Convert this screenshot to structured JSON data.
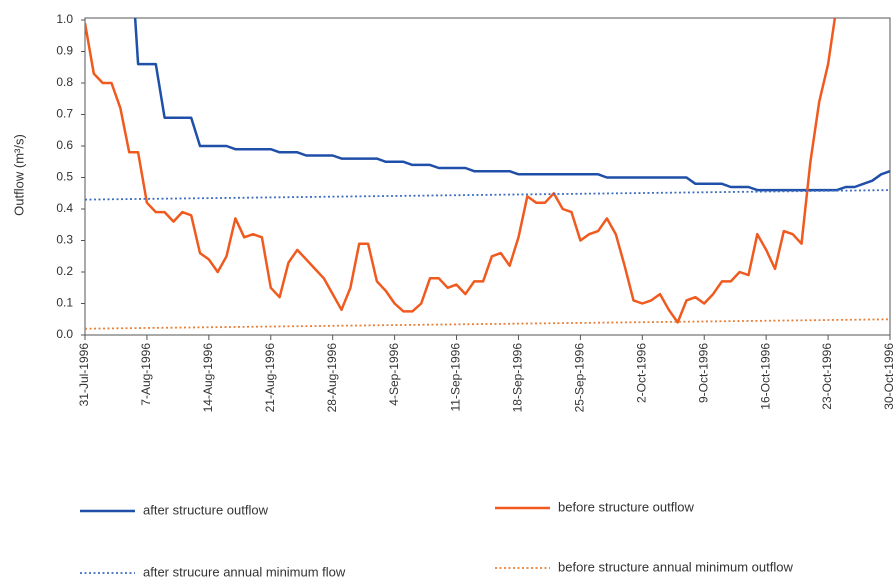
{
  "chart_data": {
    "type": "line",
    "ylabel": "Outflow (m³/s)",
    "xlim": [
      "31-Jul-1996",
      "30-Oct-1996"
    ],
    "xticks": [
      "31-Jul-1996",
      "7-Aug-1996",
      "14-Aug-1996",
      "21-Aug-1996",
      "28-Aug-1996",
      "4-Sep-1996",
      "11-Sep-1996",
      "18-Sep-1996",
      "25-Sep-1996",
      "2-Oct-1996",
      "9-Oct-1996",
      "16-Oct-1996",
      "23-Oct-1996",
      "30-Oct-1996"
    ],
    "ylim": [
      0,
      1
    ],
    "yticks": [
      {
        "value": 0,
        "label": "0.0"
      },
      0.1,
      0.2,
      0.3,
      0.4,
      0.5,
      0.6,
      0.7,
      0.8,
      0.9,
      {
        "value": 1,
        "label": "1.0"
      }
    ],
    "series": [
      {
        "name": "after structure outflow",
        "color": "#1f4fa8",
        "style": "solid",
        "x": [
          "5-Aug-1996",
          "6-Aug-1996",
          "7-Aug-1996",
          "8-Aug-1996",
          "9-Aug-1996",
          "10-Aug-1996",
          "11-Aug-1996",
          "12-Aug-1996",
          "13-Aug-1996",
          "14-Aug-1996",
          "15-Aug-1996",
          "16-Aug-1996",
          "17-Aug-1996",
          "18-Aug-1996",
          "19-Aug-1996",
          "20-Aug-1996",
          "21-Aug-1996",
          "22-Aug-1996",
          "23-Aug-1996",
          "24-Aug-1996",
          "25-Aug-1996",
          "26-Aug-1996",
          "27-Aug-1996",
          "28-Aug-1996",
          "29-Aug-1996",
          "30-Aug-1996",
          "31-Aug-1996",
          "1-Sep-1996",
          "2-Sep-1996",
          "3-Sep-1996",
          "4-Sep-1996",
          "5-Sep-1996",
          "6-Sep-1996",
          "7-Sep-1996",
          "8-Sep-1996",
          "9-Sep-1996",
          "10-Sep-1996",
          "11-Sep-1996",
          "12-Sep-1996",
          "13-Sep-1996",
          "14-Sep-1996",
          "15-Sep-1996",
          "16-Sep-1996",
          "17-Sep-1996",
          "18-Sep-1996",
          "19-Sep-1996",
          "20-Sep-1996",
          "21-Sep-1996",
          "22-Sep-1996",
          "23-Sep-1996",
          "24-Sep-1996",
          "25-Sep-1996",
          "26-Sep-1996",
          "27-Sep-1996",
          "28-Sep-1996",
          "29-Sep-1996",
          "30-Sep-1996",
          "1-Oct-1996",
          "2-Oct-1996",
          "3-Oct-1996",
          "4-Oct-1996",
          "5-Oct-1996",
          "6-Oct-1996",
          "7-Oct-1996",
          "8-Oct-1996",
          "9-Oct-1996",
          "10-Oct-1996",
          "11-Oct-1996",
          "12-Oct-1996",
          "13-Oct-1996",
          "14-Oct-1996",
          "15-Oct-1996",
          "16-Oct-1996",
          "17-Oct-1996",
          "18-Oct-1996",
          "19-Oct-1996",
          "20-Oct-1996",
          "21-Oct-1996",
          "22-Oct-1996",
          "23-Oct-1996",
          "24-Oct-1996",
          "25-Oct-1996",
          "26-Oct-1996",
          "27-Oct-1996",
          "28-Oct-1996",
          "29-Oct-1996",
          "30-Oct-1996"
        ],
        "values": [
          1.3,
          0.86,
          0.86,
          0.86,
          0.69,
          0.69,
          0.69,
          0.69,
          0.6,
          0.6,
          0.6,
          0.6,
          0.59,
          0.59,
          0.59,
          0.59,
          0.59,
          0.58,
          0.58,
          0.58,
          0.57,
          0.57,
          0.57,
          0.57,
          0.56,
          0.56,
          0.56,
          0.56,
          0.56,
          0.55,
          0.55,
          0.55,
          0.54,
          0.54,
          0.54,
          0.53,
          0.53,
          0.53,
          0.53,
          0.52,
          0.52,
          0.52,
          0.52,
          0.52,
          0.51,
          0.51,
          0.51,
          0.51,
          0.51,
          0.51,
          0.51,
          0.51,
          0.51,
          0.51,
          0.5,
          0.5,
          0.5,
          0.5,
          0.5,
          0.5,
          0.5,
          0.5,
          0.5,
          0.5,
          0.48,
          0.48,
          0.48,
          0.48,
          0.47,
          0.47,
          0.47,
          0.46,
          0.46,
          0.46,
          0.46,
          0.46,
          0.46,
          0.46,
          0.46,
          0.46,
          0.46,
          0.47,
          0.47,
          0.48,
          0.49,
          0.51,
          0.52
        ]
      },
      {
        "name": "before structure outflow",
        "color": "#f05a1e",
        "style": "solid",
        "x": [
          "31-Jul-1996",
          "1-Aug-1996",
          "2-Aug-1996",
          "3-Aug-1996",
          "4-Aug-1996",
          "5-Aug-1996",
          "6-Aug-1996",
          "7-Aug-1996",
          "8-Aug-1996",
          "9-Aug-1996",
          "10-Aug-1996",
          "11-Aug-1996",
          "12-Aug-1996",
          "13-Aug-1996",
          "14-Aug-1996",
          "15-Aug-1996",
          "16-Aug-1996",
          "17-Aug-1996",
          "18-Aug-1996",
          "19-Aug-1996",
          "20-Aug-1996",
          "21-Aug-1996",
          "22-Aug-1996",
          "23-Aug-1996",
          "24-Aug-1996",
          "25-Aug-1996",
          "26-Aug-1996",
          "27-Aug-1996",
          "28-Aug-1996",
          "29-Aug-1996",
          "30-Aug-1996",
          "31-Aug-1996",
          "1-Sep-1996",
          "2-Sep-1996",
          "3-Sep-1996",
          "4-Sep-1996",
          "5-Sep-1996",
          "6-Sep-1996",
          "7-Sep-1996",
          "8-Sep-1996",
          "9-Sep-1996",
          "10-Sep-1996",
          "11-Sep-1996",
          "12-Sep-1996",
          "13-Sep-1996",
          "14-Sep-1996",
          "15-Sep-1996",
          "16-Sep-1996",
          "17-Sep-1996",
          "18-Sep-1996",
          "19-Sep-1996",
          "20-Sep-1996",
          "21-Sep-1996",
          "22-Sep-1996",
          "23-Sep-1996",
          "24-Sep-1996",
          "25-Sep-1996",
          "26-Sep-1996",
          "27-Sep-1996",
          "28-Sep-1996",
          "29-Sep-1996",
          "30-Sep-1996",
          "1-Oct-1996",
          "2-Oct-1996",
          "3-Oct-1996",
          "4-Oct-1996",
          "5-Oct-1996",
          "6-Oct-1996",
          "7-Oct-1996",
          "8-Oct-1996",
          "9-Oct-1996",
          "10-Oct-1996",
          "11-Oct-1996",
          "12-Oct-1996",
          "13-Oct-1996",
          "14-Oct-1996",
          "15-Oct-1996",
          "16-Oct-1996",
          "17-Oct-1996",
          "18-Oct-1996",
          "19-Oct-1996",
          "20-Oct-1996",
          "21-Oct-1996",
          "22-Oct-1996",
          "23-Oct-1996",
          "24-Oct-1996"
        ],
        "values": [
          0.99,
          0.83,
          0.8,
          0.8,
          0.72,
          0.58,
          0.58,
          0.42,
          0.39,
          0.39,
          0.36,
          0.39,
          0.38,
          0.26,
          0.24,
          0.2,
          0.25,
          0.37,
          0.31,
          0.32,
          0.31,
          0.15,
          0.12,
          0.23,
          0.27,
          0.24,
          0.21,
          0.18,
          0.13,
          0.08,
          0.15,
          0.29,
          0.29,
          0.17,
          0.14,
          0.1,
          0.075,
          0.075,
          0.1,
          0.18,
          0.18,
          0.15,
          0.16,
          0.13,
          0.17,
          0.17,
          0.25,
          0.26,
          0.22,
          0.31,
          0.44,
          0.42,
          0.42,
          0.45,
          0.4,
          0.39,
          0.3,
          0.32,
          0.33,
          0.37,
          0.32,
          0.22,
          0.11,
          0.1,
          0.11,
          0.13,
          0.08,
          0.04,
          0.11,
          0.12,
          0.1,
          0.13,
          0.17,
          0.17,
          0.2,
          0.19,
          0.32,
          0.27,
          0.21,
          0.33,
          0.32,
          0.29,
          0.55,
          0.74,
          0.86,
          1.05
        ]
      },
      {
        "name": "after strucure annual minimum flow",
        "color": "#3f6fc0",
        "style": "dotted",
        "x": [
          "31-Jul-1996",
          "30-Oct-1996"
        ],
        "values": [
          0.43,
          0.46
        ]
      },
      {
        "name": "before structure annual minimum outflow",
        "color": "#e8803a",
        "style": "dotted",
        "x": [
          "31-Jul-1996",
          "30-Oct-1996"
        ],
        "values": [
          0.02,
          0.05
        ]
      }
    ]
  }
}
